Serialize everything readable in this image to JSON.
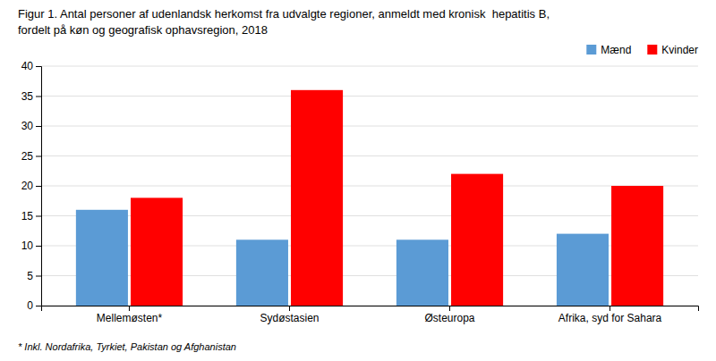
{
  "chart_data": {
    "type": "bar",
    "title": "Figur 1. Antal personer af udenlandsk herkomst fra udvalgte regioner, anmeldt med kronisk  hepatitis B,",
    "subtitle": "fordelt på køn og geografisk ophavsregion, 2018",
    "annotations": [
      "* Inkl. Nordafrika, Tyrkiet, Pakistan og Afghanistan"
    ],
    "categories": [
      "Mellemøsten*",
      "Sydøstasien",
      "Østeuropa",
      "Afrika, syd for Sahara"
    ],
    "series": [
      {
        "name": "Mænd",
        "color": "#5B9BD5",
        "values": [
          16,
          11,
          11,
          12
        ]
      },
      {
        "name": "Kvinder",
        "color": "#FF0000",
        "values": [
          18,
          36,
          22,
          20
        ]
      }
    ],
    "ylim": [
      0,
      40
    ],
    "yticks": [
      0,
      5,
      10,
      15,
      20,
      25,
      30,
      35,
      40
    ],
    "grid": true,
    "legend": "upper right"
  }
}
